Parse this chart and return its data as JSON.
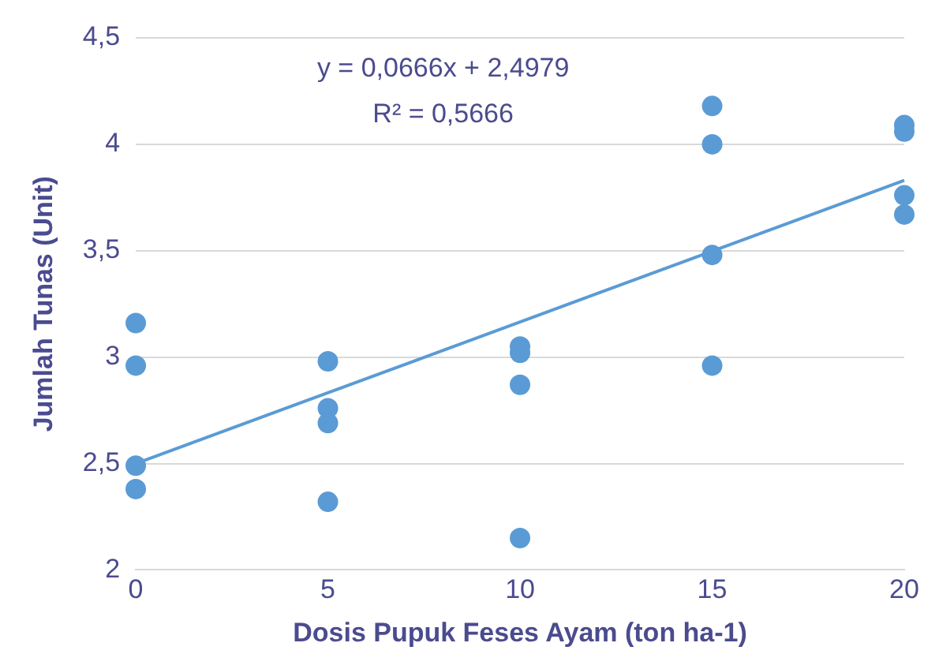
{
  "chart_data": {
    "type": "scatter",
    "xlabel": "Dosis Pupuk Feses Ayam (ton ha-1)",
    "ylabel": "Jumlah Tunas (Unit)",
    "annotations": [
      "y = 0,0666x + 2,4979",
      "R² = 0,5666"
    ],
    "xlim": [
      0,
      20
    ],
    "xticks": [
      0,
      5,
      10,
      15,
      20
    ],
    "ylim": [
      2,
      4.5
    ],
    "yticks": [
      2,
      {
        "value": 2.5,
        "label": "2,5"
      },
      3,
      {
        "value": 3.5,
        "label": "3,5"
      },
      4,
      {
        "value": 4.5,
        "label": "4,5"
      }
    ],
    "grid": "y",
    "legend": false,
    "marker": "circle",
    "series": [
      {
        "color": "#5b9bd5",
        "x": [
          0,
          0,
          0,
          0,
          5,
          5,
          5,
          5,
          10,
          10,
          10,
          10,
          15,
          15,
          15,
          15,
          20,
          20,
          20,
          20
        ],
        "values": [
          3.16,
          2.96,
          2.49,
          2.38,
          2.98,
          2.76,
          2.69,
          2.32,
          3.05,
          3.02,
          2.87,
          2.15,
          4.18,
          4.0,
          3.48,
          2.96,
          4.09,
          4.06,
          3.76,
          3.67
        ]
      },
      {
        "type": "line",
        "color": "#5b9bd5",
        "x": [
          0,
          20
        ],
        "values": [
          2.5,
          3.83
        ],
        "marker": "none",
        "line_style": "solid"
      }
    ]
  }
}
